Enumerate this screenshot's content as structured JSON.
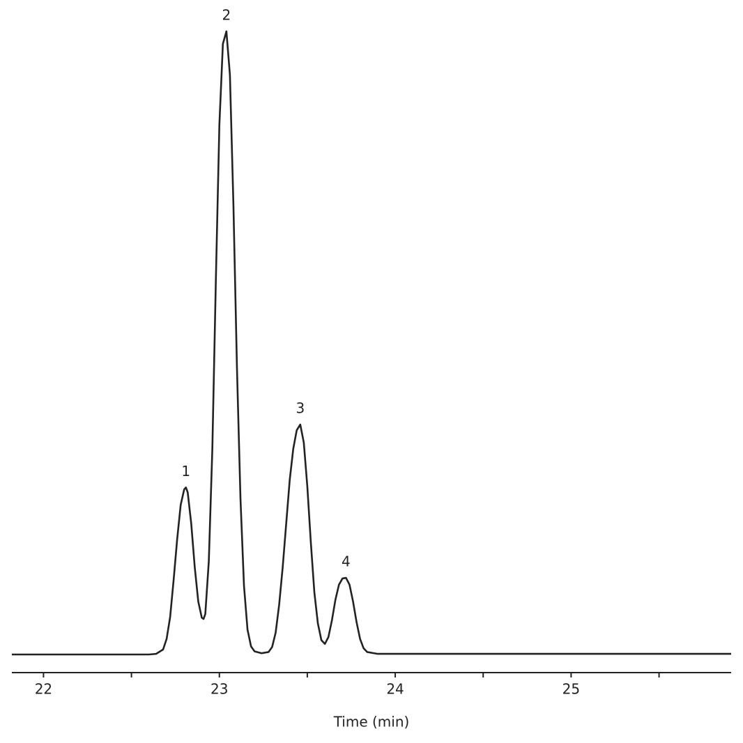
{
  "chart_data": {
    "type": "line",
    "x_label": "Time (min)",
    "x": [
      21.82,
      22.6,
      22.64,
      22.68,
      22.7,
      22.72,
      22.74,
      22.76,
      22.78,
      22.8,
      22.81,
      22.82,
      22.84,
      22.86,
      22.88,
      22.9,
      22.91,
      22.92,
      22.94,
      22.96,
      22.98,
      23.0,
      23.02,
      23.04,
      23.06,
      23.08,
      23.1,
      23.12,
      23.14,
      23.16,
      23.18,
      23.2,
      23.24,
      23.28,
      23.3,
      23.32,
      23.34,
      23.36,
      23.38,
      23.4,
      23.42,
      23.44,
      23.46,
      23.48,
      23.5,
      23.52,
      23.54,
      23.56,
      23.58,
      23.6,
      23.62,
      23.64,
      23.66,
      23.68,
      23.7,
      23.72,
      23.74,
      23.76,
      23.78,
      23.8,
      23.82,
      23.84,
      23.9,
      25.91
    ],
    "series": [
      {
        "color": "#222222",
        "values": [
          0,
          0,
          0.1,
          0.8,
          2.5,
          6,
          12,
          18.5,
          24,
          26.5,
          26.8,
          26,
          21,
          14,
          8.5,
          5.9,
          5.7,
          6.5,
          15,
          33,
          60,
          85,
          98,
          100,
          93,
          72,
          46,
          25,
          11,
          4,
          1.3,
          0.5,
          0.2,
          0.4,
          1.2,
          3.5,
          8,
          14,
          21,
          28,
          33,
          36,
          36.9,
          34,
          27,
          18,
          10,
          5,
          2.3,
          1.7,
          2.8,
          5.5,
          8.8,
          11.2,
          12.2,
          12.3,
          11.2,
          8.5,
          5.2,
          2.5,
          1.0,
          0.4,
          0.1,
          0.1
        ]
      }
    ],
    "annotations": [
      {
        "text": "1",
        "x": 22.81,
        "y": 26.8
      },
      {
        "text": "2",
        "x": 23.04,
        "y": 100
      },
      {
        "text": "3",
        "x": 23.46,
        "y": 36.9
      },
      {
        "text": "4",
        "x": 23.72,
        "y": 12.3
      }
    ],
    "xlim": [
      21.82,
      25.91
    ],
    "xticks": [
      22,
      23,
      24,
      25
    ],
    "xminorticks": [
      22.5,
      23.5,
      24.5,
      25.5
    ],
    "ylim": [
      0,
      100
    ]
  }
}
